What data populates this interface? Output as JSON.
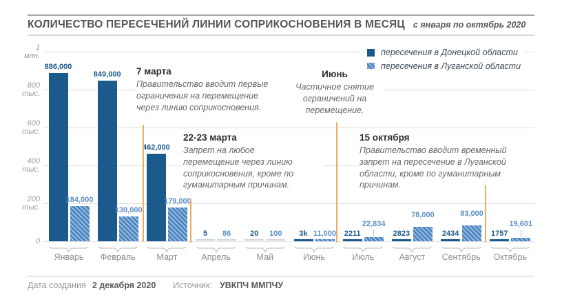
{
  "title": "КОЛИЧЕСТВО ПЕРЕСЕЧЕНИЙ ЛИНИИ СОПРИКОСНОВЕНИЯ В МЕСЯЦ",
  "subtitle": "с января по октябрь 2020",
  "legend": {
    "items": [
      {
        "label": "пересечения в Донецкой области",
        "swatch": "solid"
      },
      {
        "label": "пересечения в Луганской области",
        "swatch": "hatched"
      }
    ]
  },
  "colors": {
    "donetsk": "#1a5a8c",
    "luhansk": "#4e86c1",
    "luhansk_label": "#5b8fc6",
    "event_line": "#f2a95e",
    "gridline": "#dcdcdc"
  },
  "y_axis": {
    "ticks": [
      {
        "value": 1000000,
        "label": "1\nмлн."
      },
      {
        "value": 800000,
        "label": "800\nтыс."
      },
      {
        "value": 600000,
        "label": "600\nтыс."
      },
      {
        "value": 400000,
        "label": "400\nтыс."
      },
      {
        "value": 200000,
        "label": "200\nтыс."
      },
      {
        "value": 0,
        "label": "0"
      }
    ]
  },
  "chart_data": {
    "type": "bar",
    "categories": [
      "Январь",
      "Февраль",
      "Март",
      "Апрель",
      "Май",
      "Июнь",
      "Июль",
      "Август",
      "Сентябрь",
      "Октябрь"
    ],
    "series": [
      {
        "name": "пересечения в Донецкой области",
        "values": [
          886000,
          849000,
          462000,
          5,
          20,
          3000,
          2211,
          2823,
          2434,
          1757
        ],
        "labels": [
          "886,000",
          "849,000",
          "462,000",
          "5",
          "20",
          "3k",
          "2211",
          "2823",
          "2434",
          "1757"
        ]
      },
      {
        "name": "пересечения в Луганской области",
        "values": [
          184000,
          130000,
          179000,
          86,
          100,
          11000,
          22834,
          78000,
          83000,
          19601
        ],
        "labels": [
          "184,000",
          "130,000",
          "179,000",
          "86",
          "100",
          "11,000",
          "22,834",
          "78,000",
          "83,000",
          "19,601"
        ]
      }
    ],
    "title": "КОЛИЧЕСТВО ПЕРЕСЕЧЕНИЙ ЛИНИИ СОПРИКОСНОВЕНИЯ В МЕСЯЦ",
    "xlabel": "",
    "ylabel": "",
    "ylim": [
      0,
      1000000
    ],
    "grid": true,
    "legend_position": "top-right"
  },
  "annotations": [
    {
      "date": "7 марта",
      "text": "Правительство вводит первые\nограничения на перемещение\nчерез линию соприкосновения."
    },
    {
      "date": "22-23 марта",
      "text": "Запрет на любое\nперемещение через линию\nсоприкосновения, кроме по\nгуманитарным причинам."
    },
    {
      "date": "Июнь",
      "text": "Частичное снятие\nограничений на\nперемещение."
    },
    {
      "date": "15 октября",
      "text": "Правительство вводит временный\nзапрет на пересечение в Луганской\nобласти, кроме по гуманитарным\nпричинам."
    }
  ],
  "footer": {
    "created_label": "Дата создания",
    "created_value": "2 декабря 2020",
    "source_label": "Источник:",
    "source_value": "УВКПЧ ММПЧУ"
  }
}
